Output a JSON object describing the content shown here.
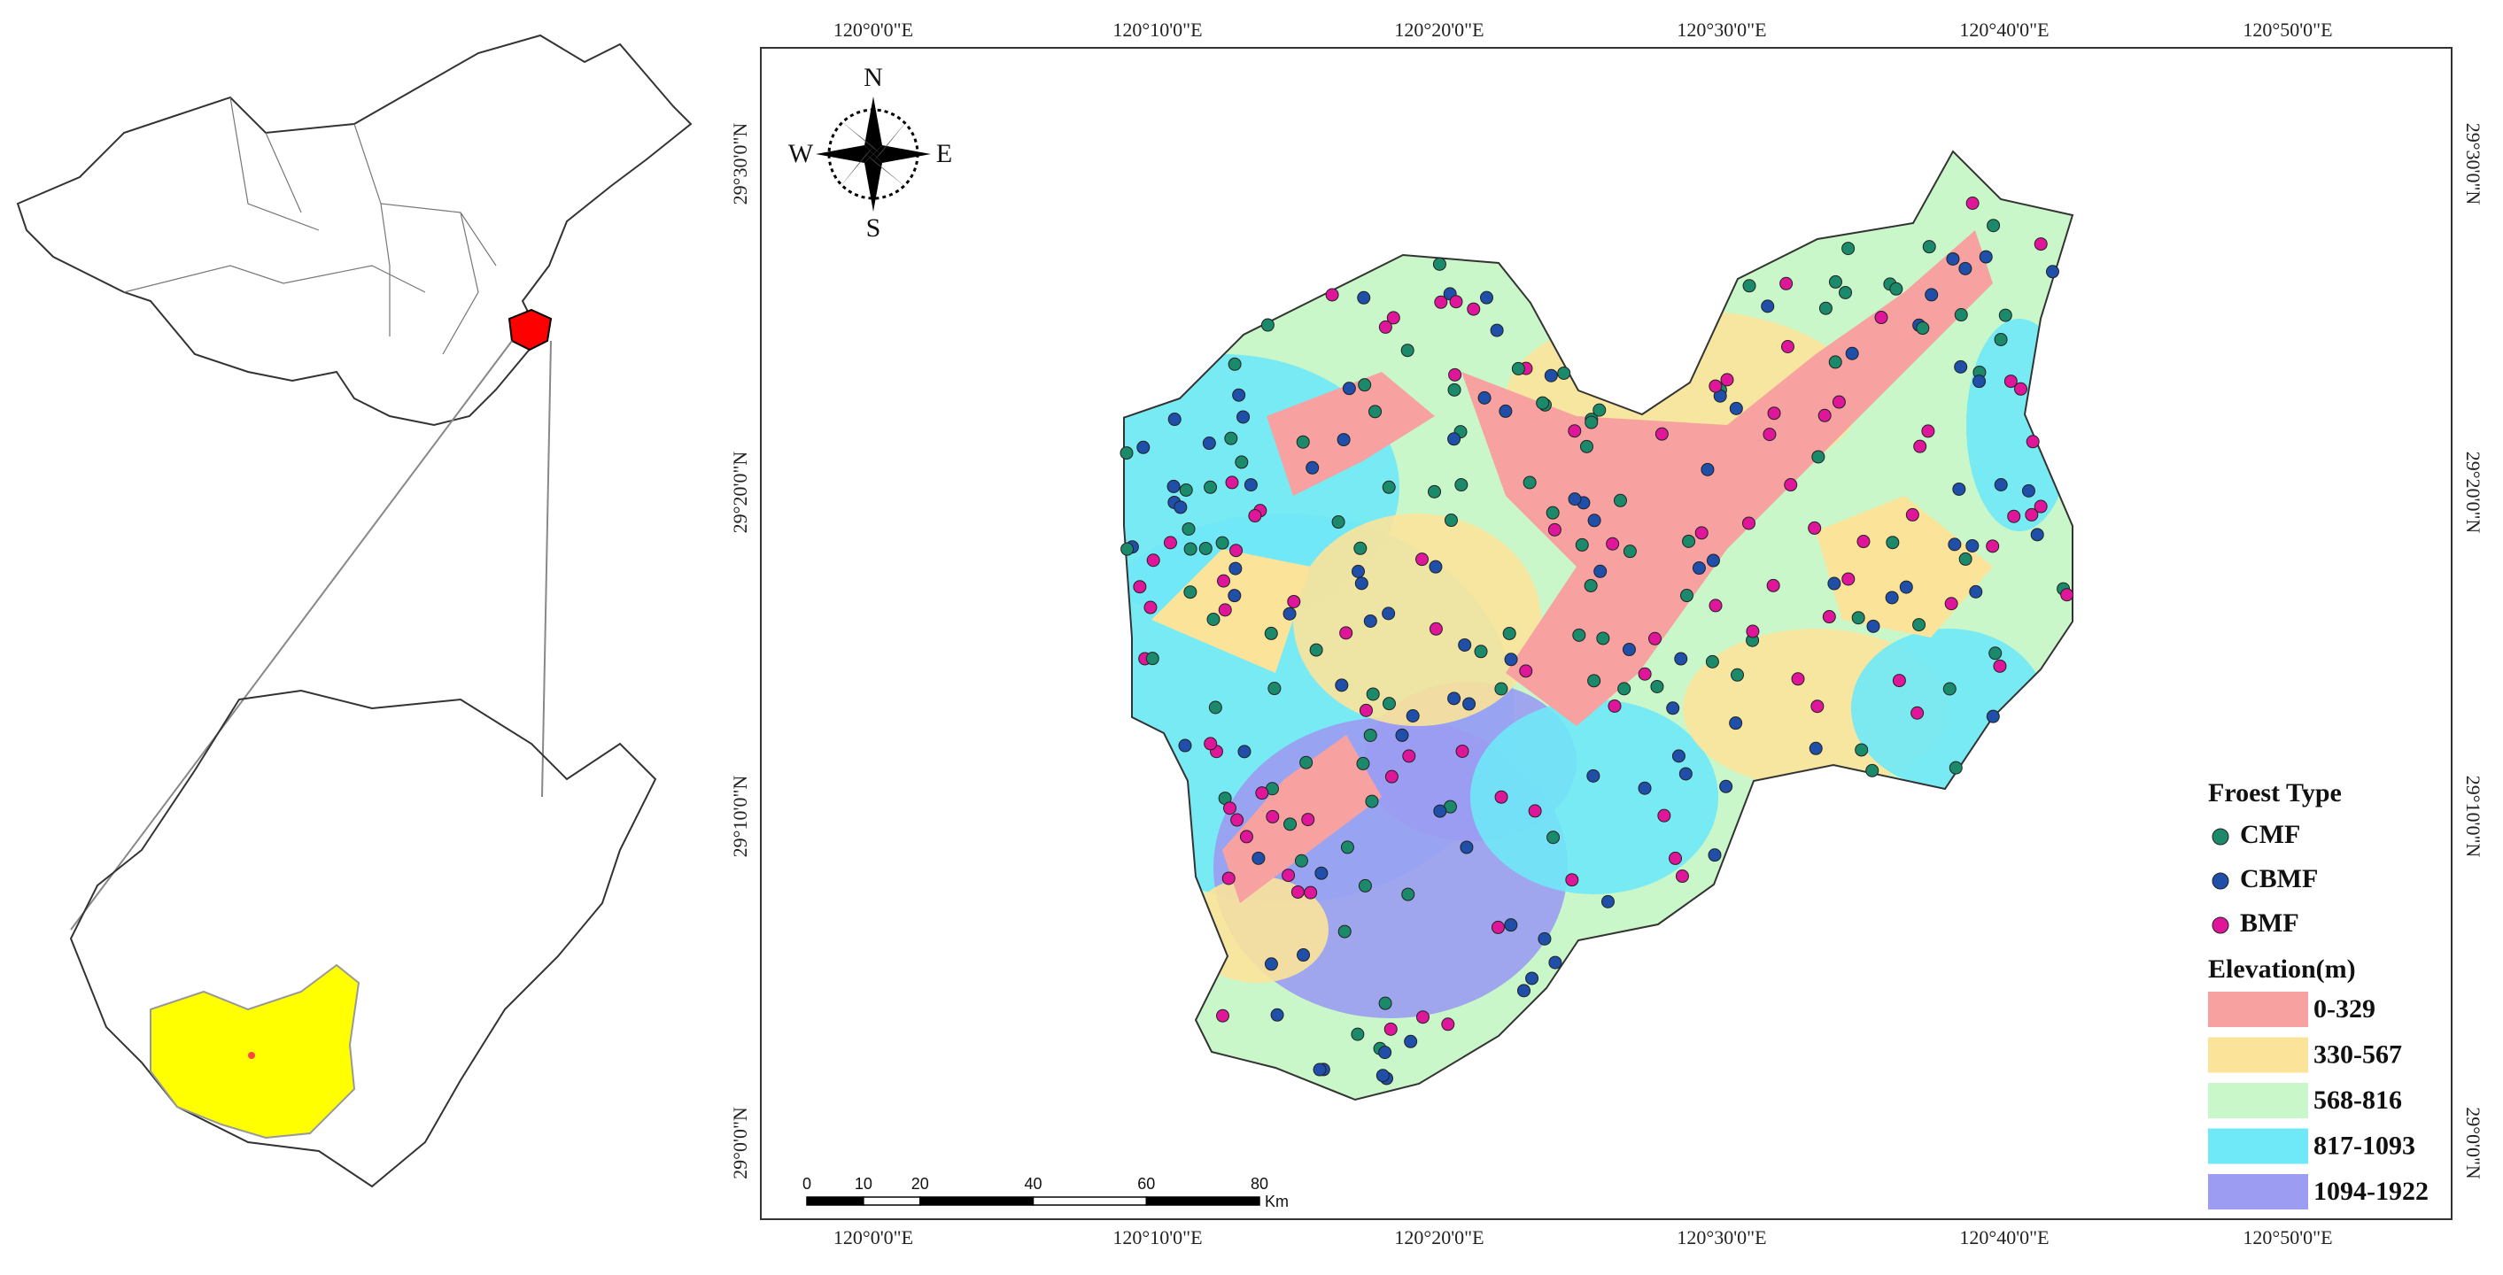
{
  "top_labels": [
    "120°0'0\"E",
    "120°10'0\"E",
    "120°20'0\"E",
    "120°30'0\"E",
    "120°40'0\"E",
    "120°50'0\"E"
  ],
  "bottom_labels": [
    "120°0'0\"E",
    "120°10'0\"E",
    "120°20'0\"E",
    "120°30'0\"E",
    "120°40'0\"E",
    "120°50'0\"E"
  ],
  "left_labels": [
    "29°30'0\"N",
    "29°20'0\"N",
    "29°10'0\"N",
    "29°0'0\"N"
  ],
  "right_labels": [
    "29°30'0\"N",
    "29°20'0\"N",
    "29°10'0\"N",
    "29°0'0\"N"
  ],
  "compass": {
    "n": "N",
    "s": "S",
    "e": "E",
    "w": "W"
  },
  "scale_bar": {
    "ticks": [
      "0",
      "10",
      "20",
      "40",
      "60",
      "80"
    ],
    "unit": "Km"
  },
  "legend": {
    "forest_title": "Froest Type",
    "forest_types": [
      {
        "label": "CMF",
        "color": "#1b8a6b"
      },
      {
        "label": "CBMF",
        "color": "#1f4fa8"
      },
      {
        "label": "BMF",
        "color": "#e0169a"
      }
    ],
    "elevation_title": "Elevation(m)",
    "elevation_classes": [
      {
        "label": "0-329",
        "color": "#f7a1a1"
      },
      {
        "label": "330-567",
        "color": "#fbe39a"
      },
      {
        "label": "568-816",
        "color": "#c9f7c9"
      },
      {
        "label": "817-1093",
        "color": "#6fe8f7"
      },
      {
        "label": "1094-1922",
        "color": "#9b9cf2"
      }
    ]
  }
}
